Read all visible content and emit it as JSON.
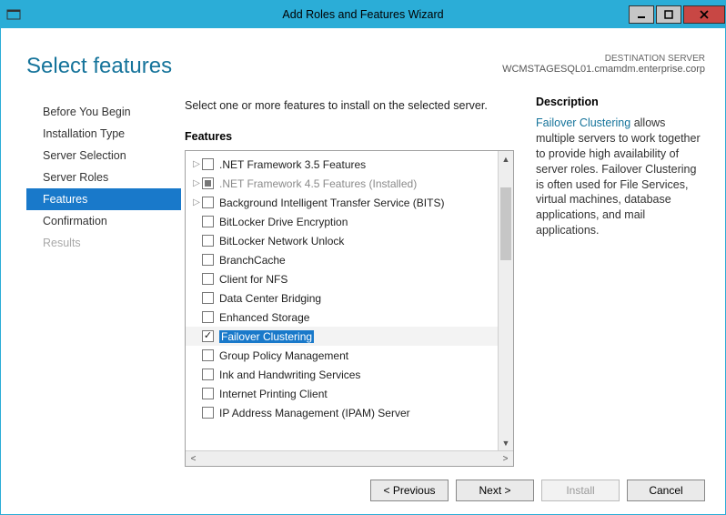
{
  "window": {
    "title": "Add Roles and Features Wizard"
  },
  "header": {
    "page_title": "Select features",
    "destination_label": "DESTINATION SERVER",
    "destination_value": "WCMSTAGESQL01.cmamdm.enterprise.corp"
  },
  "nav": {
    "items": [
      {
        "label": "Before You Begin",
        "state": "normal"
      },
      {
        "label": "Installation Type",
        "state": "normal"
      },
      {
        "label": "Server Selection",
        "state": "normal"
      },
      {
        "label": "Server Roles",
        "state": "normal"
      },
      {
        "label": "Features",
        "state": "active"
      },
      {
        "label": "Confirmation",
        "state": "normal"
      },
      {
        "label": "Results",
        "state": "disabled"
      }
    ]
  },
  "center": {
    "instruction": "Select one or more features to install on the selected server.",
    "section_label": "Features",
    "features": [
      {
        "label": ".NET Framework 3.5 Features",
        "expandable": true,
        "check": "empty"
      },
      {
        "label": ".NET Framework 4.5 Features (Installed)",
        "expandable": true,
        "check": "square",
        "installed": true
      },
      {
        "label": "Background Intelligent Transfer Service (BITS)",
        "expandable": true,
        "check": "empty"
      },
      {
        "label": "BitLocker Drive Encryption",
        "expandable": false,
        "check": "empty"
      },
      {
        "label": "BitLocker Network Unlock",
        "expandable": false,
        "check": "empty"
      },
      {
        "label": "BranchCache",
        "expandable": false,
        "check": "empty"
      },
      {
        "label": "Client for NFS",
        "expandable": false,
        "check": "empty"
      },
      {
        "label": "Data Center Bridging",
        "expandable": false,
        "check": "empty"
      },
      {
        "label": "Enhanced Storage",
        "expandable": false,
        "check": "empty"
      },
      {
        "label": "Failover Clustering",
        "expandable": false,
        "check": "checked",
        "selected": true
      },
      {
        "label": "Group Policy Management",
        "expandable": false,
        "check": "empty"
      },
      {
        "label": "Ink and Handwriting Services",
        "expandable": false,
        "check": "empty"
      },
      {
        "label": "Internet Printing Client",
        "expandable": false,
        "check": "empty"
      },
      {
        "label": "IP Address Management (IPAM) Server",
        "expandable": false,
        "check": "empty"
      }
    ]
  },
  "right": {
    "section_label": "Description",
    "emphasis": "Failover Clustering",
    "text_rest": " allows multiple servers to work together to provide high availability of server roles. Failover Clustering is often used for File Services, virtual machines, database applications, and mail applications."
  },
  "footer": {
    "previous": "< Previous",
    "next": "Next >",
    "install": "Install",
    "cancel": "Cancel"
  },
  "colors": {
    "accent_blue": "#1979ca",
    "titlebar": "#2badd7",
    "heading_teal": "#16749b"
  }
}
